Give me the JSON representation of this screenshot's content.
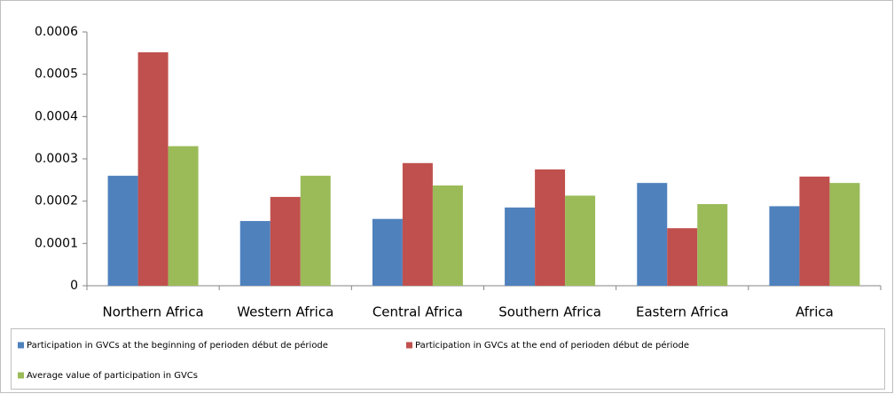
{
  "chart_data": {
    "type": "bar",
    "categories": [
      "Northern Africa",
      "Western Africa",
      "Central Africa",
      "Southern Africa",
      "Eastern Africa",
      "Africa"
    ],
    "series": [
      {
        "name": "Participation in GVCs at the beginning of perioden début de période",
        "color": "#4f81bd",
        "values": [
          0.00026,
          0.000153,
          0.000158,
          0.000185,
          0.000243,
          0.000188
        ]
      },
      {
        "name": "Participation in GVCs at the end of perioden début de période",
        "color": "#c0504d",
        "values": [
          0.000552,
          0.00021,
          0.00029,
          0.000275,
          0.000136,
          0.000258
        ]
      },
      {
        "name": "Average value of participation in GVCs",
        "color": "#9bbb59",
        "values": [
          0.00033,
          0.00026,
          0.000237,
          0.000213,
          0.000193,
          0.000243
        ]
      }
    ],
    "ylim": [
      0,
      0.0006
    ],
    "yticks": [
      0,
      0.0001,
      0.0002,
      0.0003,
      0.0004,
      0.0005,
      0.0006
    ],
    "grid": false
  }
}
